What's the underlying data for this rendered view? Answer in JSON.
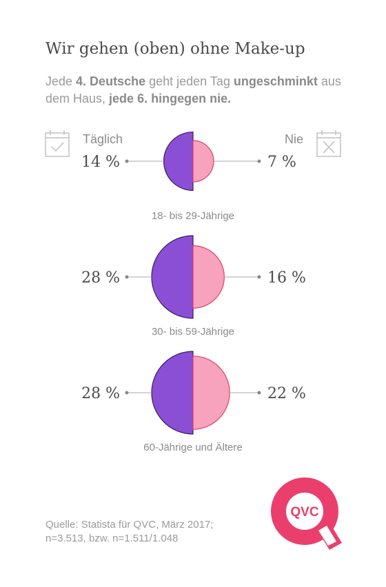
{
  "title": "Wir gehen (oben) ohne Make-up",
  "subtitle": {
    "p1": "Jede ",
    "b1": "4. Deutsche",
    "p2": " geht jeden Tag ",
    "b2": "ungeschminkt",
    "p3": " aus dem Haus, ",
    "b3": "jede 6. hingegen nie."
  },
  "legend": {
    "left": "Täglich",
    "right": "Nie"
  },
  "icons": {
    "left": "calendar-check-icon",
    "right": "calendar-cross-icon"
  },
  "colors": {
    "daily_fill": "#8b4fd6",
    "daily_stroke": "#3a1a5e",
    "never_fill": "#f7a3bd",
    "never_stroke": "#e33d6a",
    "logo": "#ea3f6d"
  },
  "chart_data": {
    "type": "half-circle-comparison",
    "title": "Wir gehen (oben) ohne Make-up",
    "unit": "%",
    "categories": [
      "18- bis 29-Jährige",
      "30- bis 59-Jährige",
      "60-Jährige und Ältere"
    ],
    "series": [
      {
        "name": "Täglich",
        "values": [
          14,
          28,
          28
        ],
        "labels": [
          "14 %",
          "28 %",
          "28 %"
        ]
      },
      {
        "name": "Nie",
        "values": [
          7,
          16,
          22
        ],
        "labels": [
          "7 %",
          "16 %",
          "22 %"
        ]
      }
    ]
  },
  "source": {
    "line1": "Quelle: Statista für QVC, März 2017;",
    "line2": "n=3.513, bzw. n=1.511/1.048"
  },
  "logo_text": "QVC"
}
